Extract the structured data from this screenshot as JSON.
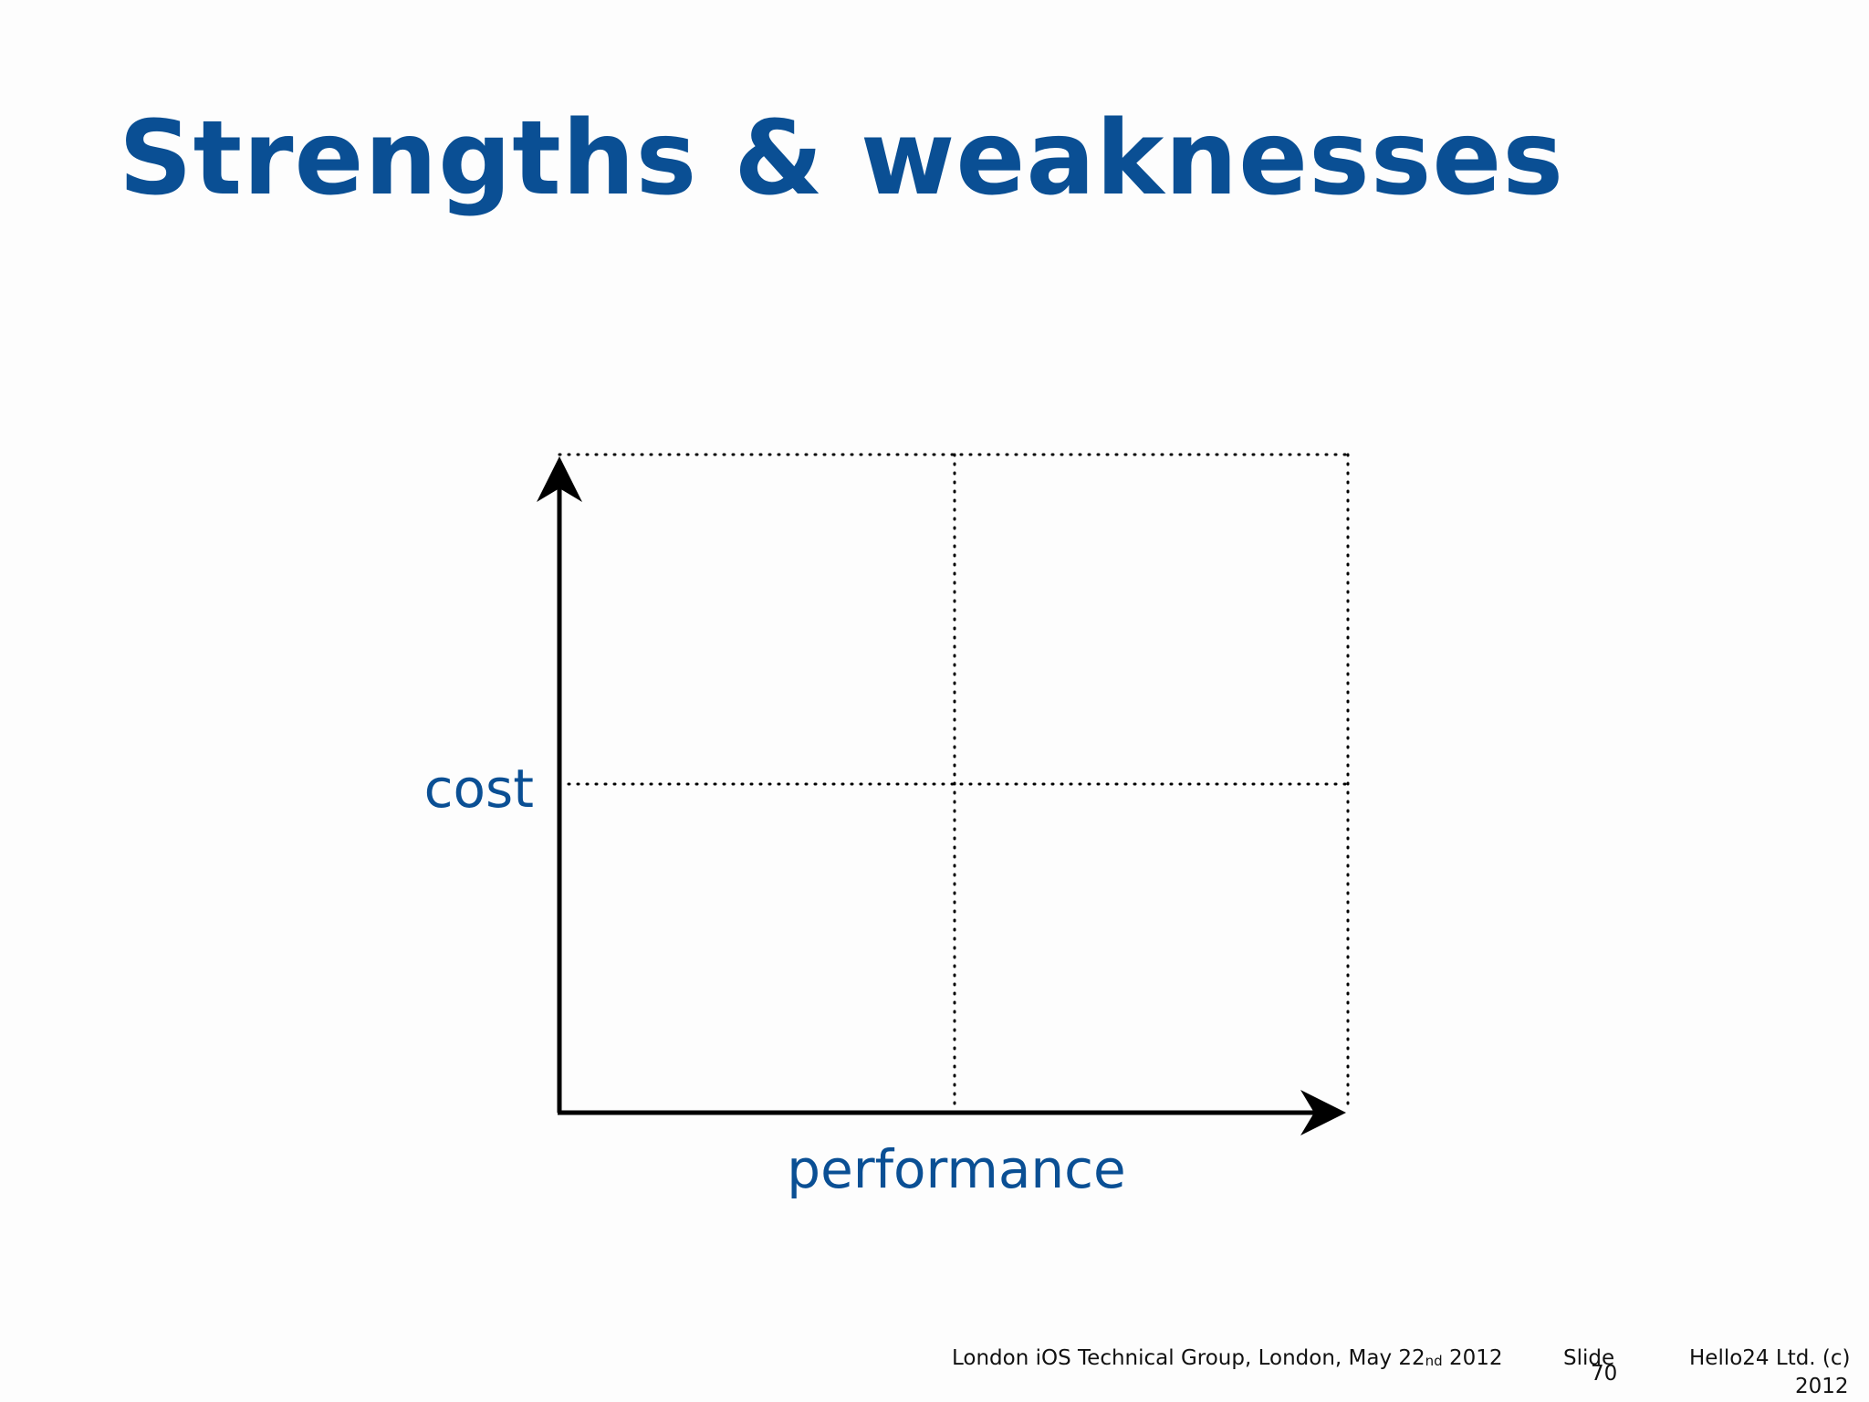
{
  "slide": {
    "title": "Strengths & weaknesses"
  },
  "diagram": {
    "type": "2x2 quadrant matrix",
    "y_axis_label": "cost",
    "x_axis_label": "performance",
    "axis_color": "#000000",
    "grid_style": "dotted",
    "label_color": "#0a4f94"
  },
  "footer": {
    "event_prefix": "London iOS Technical Group, London, May 22",
    "event_ordinal_suffix": "nd",
    "event_year": " 2012",
    "slide_word": "Slide",
    "slide_number": "70",
    "company": "Hello24 Ltd. (c)",
    "copyright_year": "2012"
  },
  "colors": {
    "title": "#0a4f94",
    "background": "#fdfdfd",
    "footer_text": "#111111"
  }
}
